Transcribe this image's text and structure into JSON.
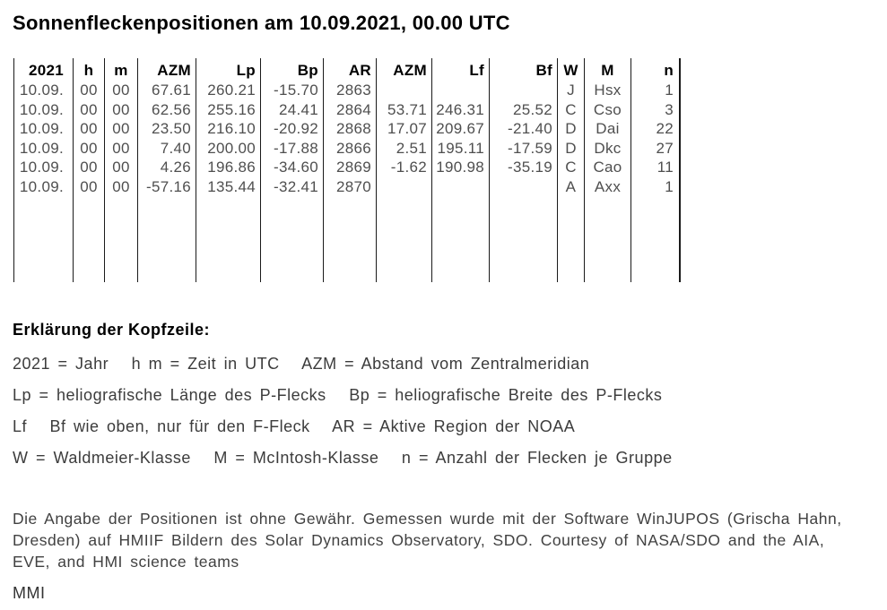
{
  "title": "Sonnenfleckenpositionen am 10.09.2021, 00.00 UTC",
  "table": {
    "columns": [
      {
        "key": "year",
        "label": "2021"
      },
      {
        "key": "h",
        "label": "h"
      },
      {
        "key": "m",
        "label": "m"
      },
      {
        "key": "azm-p",
        "label": "AZM"
      },
      {
        "key": "lp",
        "label": "Lp"
      },
      {
        "key": "bp",
        "label": "Bp"
      },
      {
        "key": "ar",
        "label": "AR"
      },
      {
        "key": "azm-f",
        "label": "AZM"
      },
      {
        "key": "lf",
        "label": "Lf"
      },
      {
        "key": "bf",
        "label": "Bf"
      },
      {
        "key": "w",
        "label": "W"
      },
      {
        "key": "mcintosh",
        "label": "M"
      },
      {
        "key": "n",
        "label": "n"
      }
    ],
    "rows": [
      [
        "10.09.",
        "00",
        "00",
        "67.61",
        "260.21",
        "-15.70",
        "2863",
        "",
        "",
        "",
        "J",
        "Hsx",
        "1"
      ],
      [
        "10.09.",
        "00",
        "00",
        "62.56",
        "255.16",
        "24.41",
        "2864",
        "53.71",
        "246.31",
        "25.52",
        "C",
        "Cso",
        "3"
      ],
      [
        "10.09.",
        "00",
        "00",
        "23.50",
        "216.10",
        "-20.92",
        "2868",
        "17.07",
        "209.67",
        "-21.40",
        "D",
        "Dai",
        "22"
      ],
      [
        "10.09.",
        "00",
        "00",
        "7.40",
        "200.00",
        "-17.88",
        "2866",
        "2.51",
        "195.11",
        "-17.59",
        "D",
        "Dkc",
        "27"
      ],
      [
        "10.09.",
        "00",
        "00",
        "4.26",
        "196.86",
        "-34.60",
        "2869",
        "-1.62",
        "190.98",
        "-35.19",
        "C",
        "Cao",
        "11"
      ],
      [
        "10.09.",
        "00",
        "00",
        "-57.16",
        "135.44",
        "-32.41",
        "2870",
        "",
        "",
        "",
        "A",
        "Axx",
        "1"
      ]
    ]
  },
  "legend": {
    "heading": "Erklärung der Kopfzeile:",
    "lines": [
      "2021 = Jahr   h m = Zeit in UTC   AZM = Abstand vom Zentralmeridian",
      "Lp = heliografische Länge des P-Flecks   Bp = heliografische Breite des P-Flecks",
      "Lf   Bf wie oben, nur für den F-Fleck   AR = Aktive Region der NOAA",
      "W = Waldmeier-Klasse   M = McIntosh-Klasse   n = Anzahl der Flecken je Gruppe"
    ]
  },
  "disclaimer": "Die Angabe der Positionen ist ohne Gewähr. Gemessen wurde mit der Software WinJUPOS (Grischa Hahn,\nDresden) auf HMIIF Bildern des Solar Dynamics Observatory, SDO. Courtesy of NASA/SDO and the AIA,\nEVE, and HMI science teams",
  "footer": "MMI",
  "colors": {
    "background": "#ffffff",
    "heading_text": "#000000",
    "body_text": "#3c3c3c",
    "table_data_text": "#4f4f4f",
    "table_border": "#1a1a1a"
  }
}
